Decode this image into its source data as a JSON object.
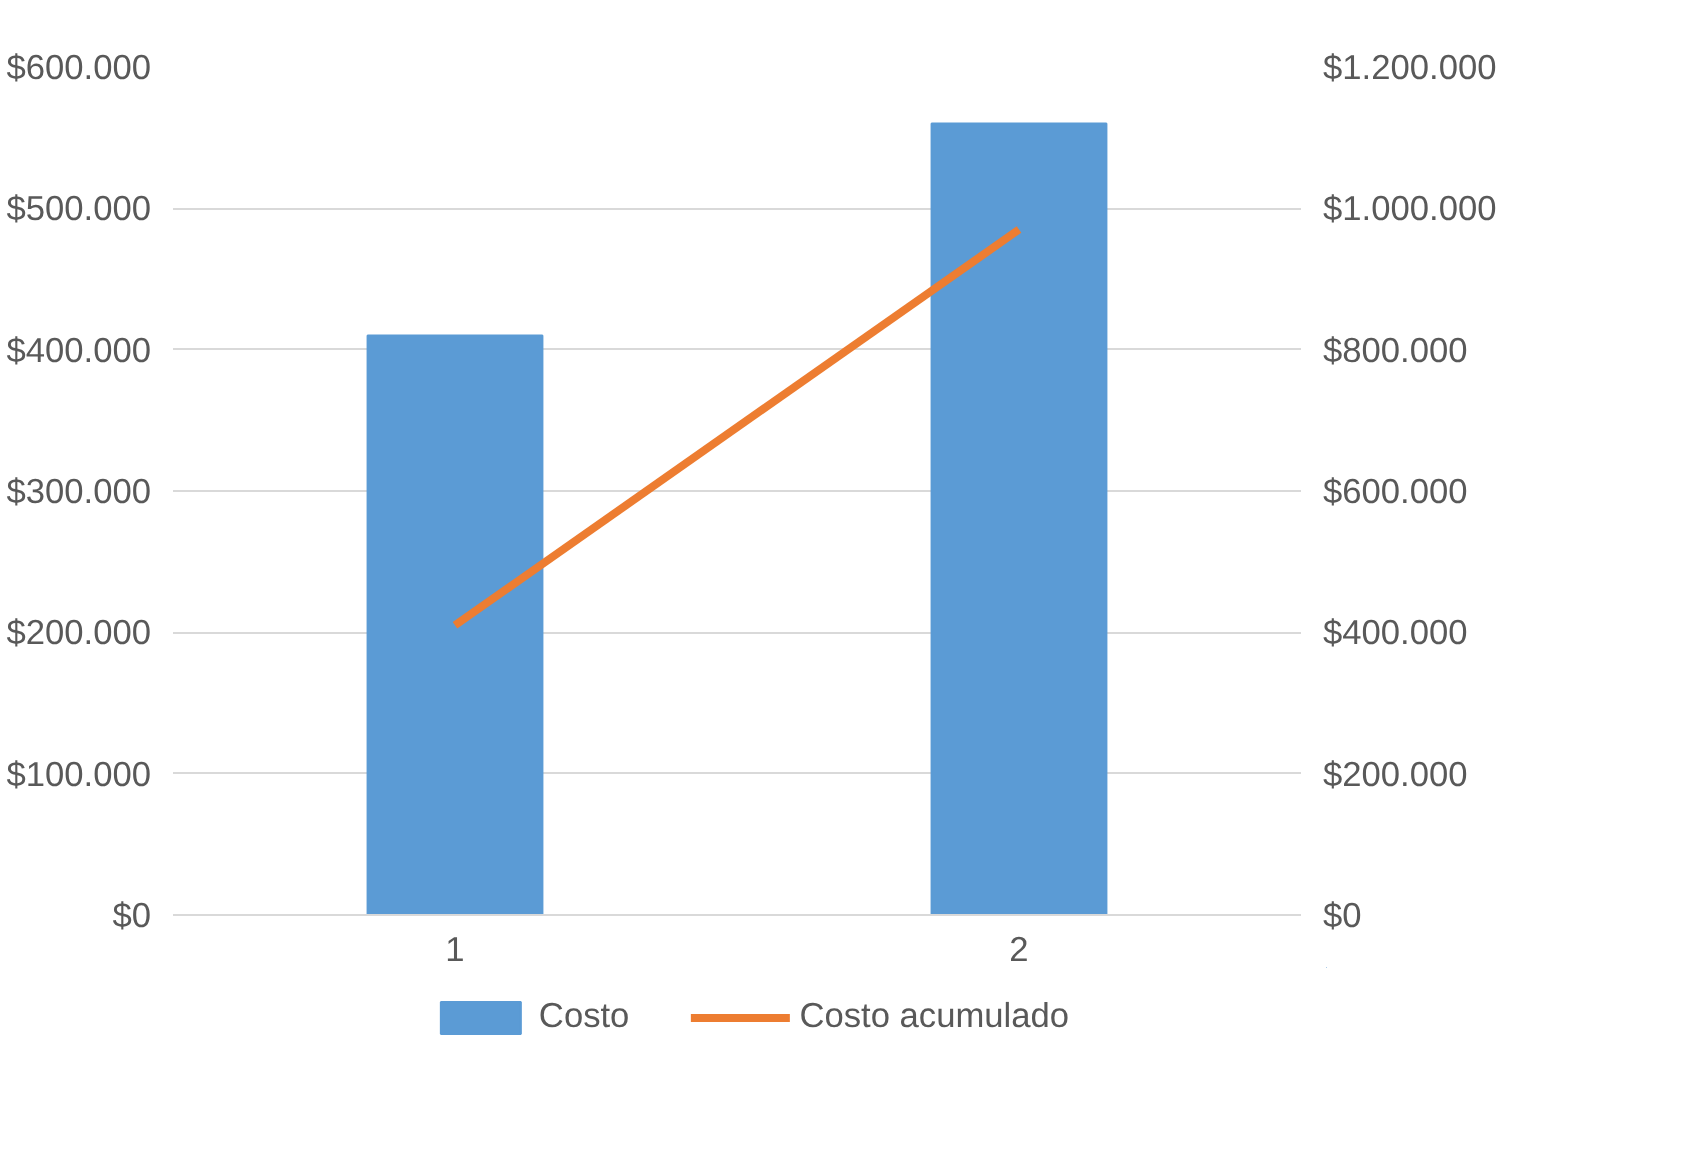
{
  "chart_data": {
    "type": "bar",
    "categories": [
      "1",
      "2"
    ],
    "series": [
      {
        "name": "Costo",
        "type": "bar",
        "color": "#5b9bd5",
        "values": [
          410000,
          560000
        ]
      },
      {
        "name": "Costo acumulado",
        "type": "line",
        "axis": "y2",
        "color": "#ed7d31",
        "values": [
          410000,
          970000
        ]
      }
    ],
    "ylim": [
      0,
      600000
    ],
    "yticks": [
      {
        "value": 0,
        "label": "$0"
      },
      {
        "value": 100000,
        "label": "$100.000"
      },
      {
        "value": 200000,
        "label": "$200.000"
      },
      {
        "value": 300000,
        "label": "$300.000"
      },
      {
        "value": 400000,
        "label": "$400.000"
      },
      {
        "value": 500000,
        "label": "$500.000"
      },
      {
        "value": 600000,
        "label": "$600.000"
      }
    ],
    "y2lim": [
      0,
      1200000
    ],
    "y2ticks": [
      {
        "value": 0,
        "label": "$0"
      },
      {
        "value": 200000,
        "label": "$200.000"
      },
      {
        "value": 400000,
        "label": "$400.000"
      },
      {
        "value": 600000,
        "label": "$600.000"
      },
      {
        "value": 800000,
        "label": "$800.000"
      },
      {
        "value": 1000000,
        "label": "$1.000.000"
      },
      {
        "value": 1200000,
        "label": "$1.200.000"
      }
    ],
    "grid": "y",
    "legend": "bottom",
    "marker": "none",
    "line_style": "solid"
  }
}
